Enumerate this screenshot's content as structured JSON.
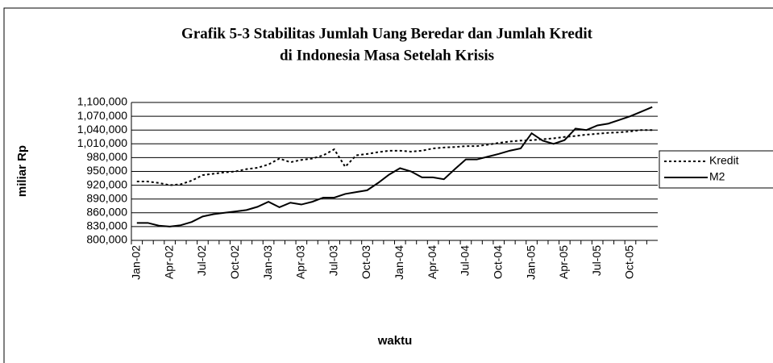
{
  "chart_data": {
    "type": "line",
    "title": "Grafik 5-3 Stabilitas Jumlah Uang Beredar dan Jumlah Kredit",
    "subtitle": "di Indonesia Masa Setelah Krisis",
    "x_label": "waktu",
    "y_label": "miliar Rp",
    "categories": [
      "Jan-02",
      null,
      null,
      "Apr-02",
      null,
      null,
      "Jul-02",
      null,
      null,
      "Oct-02",
      null,
      null,
      "Jan-03",
      null,
      null,
      "Apr-03",
      null,
      null,
      "Jul-03",
      null,
      null,
      "Oct-03",
      null,
      null,
      "Jan-04",
      null,
      null,
      "Apr-04",
      null,
      null,
      "Jul-04",
      null,
      null,
      "Oct-04",
      null,
      null,
      "Jan-05",
      null,
      null,
      "Apr-05",
      null,
      null,
      "Jul-05",
      null,
      null,
      "Oct-05",
      null,
      null
    ],
    "series": [
      {
        "name": "Kredit",
        "color": "#000000",
        "dash": "dotted",
        "values": [
          928000,
          928000,
          925000,
          920000,
          922000,
          930000,
          942000,
          945000,
          948000,
          950000,
          955000,
          958000,
          965000,
          978000,
          970000,
          975000,
          978000,
          985000,
          998000,
          960000,
          985000,
          988000,
          992000,
          995000,
          995000,
          993000,
          995000,
          1000000,
          1002000,
          1003000,
          1005000,
          1005000,
          1008000,
          1012000,
          1015000,
          1017000,
          1018000,
          1020000,
          1022000,
          1025000,
          1027000,
          1030000,
          1032000,
          1034000,
          1035000,
          1037000,
          1040000,
          1040000
        ]
      },
      {
        "name": "M2",
        "color": "#000000",
        "dash": "solid",
        "values": [
          838000,
          838000,
          832000,
          830000,
          833000,
          840000,
          852000,
          857000,
          860000,
          863000,
          866000,
          873000,
          884000,
          872000,
          882000,
          878000,
          884000,
          893000,
          893000,
          901000,
          905000,
          909000,
          925000,
          943000,
          957000,
          950000,
          937000,
          937000,
          933000,
          955000,
          976000,
          976000,
          982000,
          988000,
          995000,
          1000000,
          1033000,
          1017000,
          1010000,
          1018000,
          1043000,
          1040000,
          1050000,
          1054000,
          1062000,
          1070000,
          1080000,
          1090000
        ]
      }
    ],
    "ylim": [
      800000,
      1100000
    ],
    "yticks": [
      {
        "value": 800000,
        "label": "800,000"
      },
      {
        "value": 830000,
        "label": "830,000"
      },
      {
        "value": 860000,
        "label": "860,000"
      },
      {
        "value": 890000,
        "label": "890,000"
      },
      {
        "value": 920000,
        "label": "920,000"
      },
      {
        "value": 950000,
        "label": "950,000"
      },
      {
        "value": 980000,
        "label": "980,000"
      },
      {
        "value": 1010000,
        "label": "1,010,000"
      },
      {
        "value": 1040000,
        "label": "1,040,000"
      },
      {
        "value": 1070000,
        "label": "1,070,000"
      },
      {
        "value": 1100000,
        "label": "1,100,000"
      }
    ],
    "grid": true,
    "legend": "right"
  }
}
